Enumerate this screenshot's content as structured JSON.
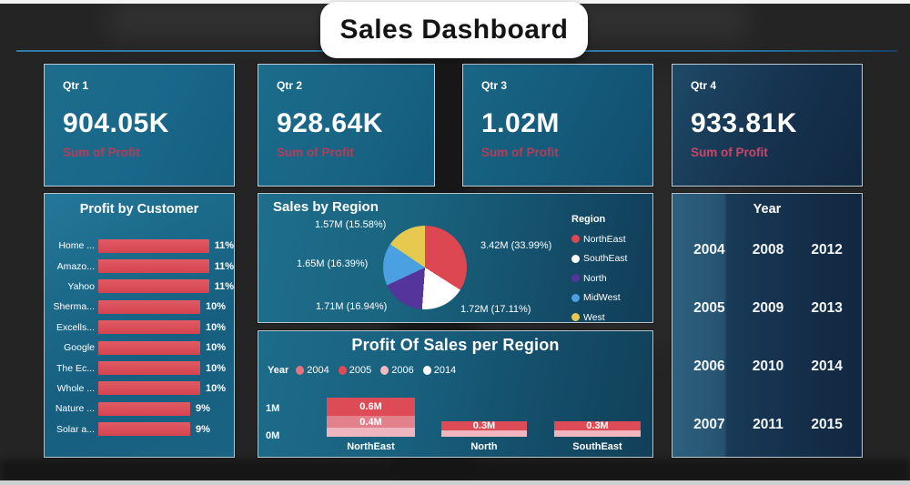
{
  "page": {
    "title": "Sales Dashboard"
  },
  "kpi_cards": [
    {
      "label": "Qtr 1",
      "value": "904.05K",
      "caption": "Sum of Profit"
    },
    {
      "label": "Qtr 2",
      "value": "928.64K",
      "caption": "Sum of Profit"
    },
    {
      "label": "Qtr 3",
      "value": "1.02M",
      "caption": "Sum of Profit"
    },
    {
      "label": "Qtr 4",
      "value": "933.81K",
      "caption": "Sum of Profit"
    }
  ],
  "chart_data": [
    {
      "id": "profit_by_customer",
      "type": "bar",
      "orientation": "horizontal",
      "title": "Profit by Customer",
      "categories": [
        "Home ...",
        "Amazo...",
        "Yahoo",
        "Sherma...",
        "Excells...",
        "Google",
        "The Ec...",
        "Whole ...",
        "Nature ...",
        "Solar a..."
      ],
      "values": [
        11,
        11,
        11,
        10,
        10,
        10,
        10,
        10,
        9,
        9
      ],
      "value_labels": [
        "11%",
        "11%",
        "11%",
        "10%",
        "10%",
        "10%",
        "10%",
        "10%",
        "9%",
        "9%"
      ],
      "bar_color": "#d94a55",
      "xlim": [
        0,
        12
      ],
      "grid": false
    },
    {
      "id": "sales_by_region",
      "type": "pie",
      "title": "Sales by Region",
      "legend_title": "Region",
      "legend_position": "right",
      "slices": [
        {
          "label": "NorthEast",
          "value": 3.42,
          "pct": 33.99,
          "value_label": "3.42M (33.99%)",
          "color": "#dc4751"
        },
        {
          "label": "SouthEast",
          "value": 1.72,
          "pct": 17.11,
          "value_label": "1.72M (17.11%)",
          "color": "#ffffff"
        },
        {
          "label": "North",
          "value": 1.71,
          "pct": 16.94,
          "value_label": "1.71M (16.94%)",
          "color": "#55349b"
        },
        {
          "label": "MidWest",
          "value": 1.65,
          "pct": 16.39,
          "value_label": "1.65M (16.39%)",
          "color": "#4aa0e0"
        },
        {
          "label": "West",
          "value": 1.57,
          "pct": 15.58,
          "value_label": "1.57M (15.58%)",
          "color": "#e6c94f"
        }
      ]
    },
    {
      "id": "profit_of_sales_per_region",
      "type": "bar",
      "subtype": "stacked",
      "title": "Profit Of Sales per Region",
      "legend_title": "Year",
      "legend": [
        {
          "label": "2004",
          "color": "#e5737d"
        },
        {
          "label": "2005",
          "color": "#e04a54"
        },
        {
          "label": "2006",
          "color": "#f2b8c1"
        },
        {
          "label": "2014",
          "color": "#ffffff"
        }
      ],
      "categories": [
        "NorthEast",
        "North",
        "SouthEast"
      ],
      "y_ticks": [
        "1M",
        "0M"
      ],
      "ylim": [
        0,
        1.35
      ],
      "bars": [
        {
          "category": "NorthEast",
          "segments": [
            {
              "value": 0.3,
              "label": "",
              "color": "#f0b6c0"
            },
            {
              "value": 0.4,
              "label": "0.4M",
              "color": "#e2808c"
            },
            {
              "value": 0.6,
              "label": "0.6M",
              "color": "#dd4b57"
            }
          ]
        },
        {
          "category": "North",
          "segments": [
            {
              "value": 0.2,
              "label": "",
              "color": "#f0b6c0"
            },
            {
              "value": 0.3,
              "label": "0.3M",
              "color": "#dd4b57"
            }
          ]
        },
        {
          "category": "SouthEast",
          "segments": [
            {
              "value": 0.2,
              "label": "",
              "color": "#f0b6c0"
            },
            {
              "value": 0.3,
              "label": "0.3M",
              "color": "#dd4b57"
            }
          ]
        }
      ]
    }
  ],
  "year_slicer": {
    "title": "Year",
    "years": [
      "2004",
      "2008",
      "2012",
      "2005",
      "2009",
      "2013",
      "2006",
      "2010",
      "2014",
      "2007",
      "2011",
      "2015"
    ]
  },
  "colors": {
    "panel_teal": "#1a6585",
    "accent_line": "#2b7da8",
    "bar_red": "#d94a55",
    "caption_crimson": "#b23d58"
  }
}
